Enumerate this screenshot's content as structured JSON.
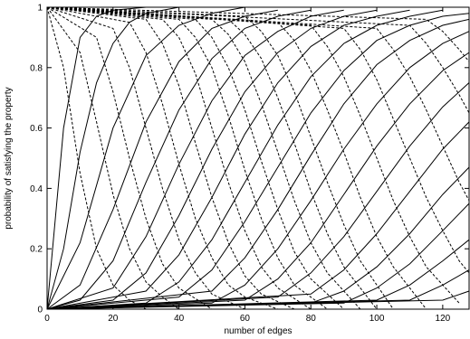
{
  "chart_data": {
    "type": "line",
    "title": "",
    "xlabel": "number of edges",
    "ylabel": "probability of satisfying the property",
    "xlim": [
      0,
      128
    ],
    "ylim": [
      0,
      1
    ],
    "xticks": [
      0,
      20,
      40,
      60,
      80,
      100,
      120
    ],
    "yticks": [
      0,
      0.2,
      0.4,
      0.6,
      0.8,
      1
    ],
    "xtick_labels": [
      "0",
      "20",
      "40",
      "60",
      "80",
      "100",
      "120"
    ],
    "ytick_labels": [
      "0",
      "0.2",
      "0.4",
      "0.6",
      "0.8",
      "1"
    ],
    "grid": false,
    "legend": "none",
    "series_style": {
      "solid": "increasing sigmoid curves",
      "dashed": "decreasing sigmoid curves"
    },
    "series": [
      {
        "style": "solid",
        "x": [
          0,
          5,
          10,
          15,
          20,
          30
        ],
        "y": [
          0,
          0.6,
          0.9,
          0.97,
          0.99,
          1
        ]
      },
      {
        "style": "solid",
        "x": [
          0,
          5,
          10,
          15,
          20,
          25,
          30,
          40
        ],
        "y": [
          0,
          0.2,
          0.52,
          0.75,
          0.88,
          0.95,
          0.98,
          1
        ]
      },
      {
        "style": "solid",
        "x": [
          0,
          10,
          20,
          30,
          40,
          50,
          60
        ],
        "y": [
          0,
          0.22,
          0.6,
          0.84,
          0.94,
          0.98,
          1
        ]
      },
      {
        "style": "solid",
        "x": [
          0,
          10,
          20,
          30,
          40,
          50,
          60,
          70
        ],
        "y": [
          0,
          0.08,
          0.33,
          0.62,
          0.82,
          0.93,
          0.97,
          0.99
        ]
      },
      {
        "style": "solid",
        "x": [
          0,
          10,
          20,
          30,
          40,
          50,
          60,
          70,
          80
        ],
        "y": [
          0,
          0.03,
          0.16,
          0.42,
          0.66,
          0.83,
          0.93,
          0.97,
          0.99
        ]
      },
      {
        "style": "solid",
        "x": [
          0,
          20,
          30,
          40,
          50,
          60,
          70,
          80,
          90
        ],
        "y": [
          0,
          0.07,
          0.24,
          0.48,
          0.69,
          0.84,
          0.92,
          0.97,
          0.99
        ]
      },
      {
        "style": "solid",
        "x": [
          0,
          20,
          30,
          40,
          50,
          60,
          70,
          80,
          90,
          100
        ],
        "y": [
          0,
          0.03,
          0.12,
          0.31,
          0.53,
          0.72,
          0.85,
          0.93,
          0.97,
          0.99
        ]
      },
      {
        "style": "solid",
        "x": [
          0,
          30,
          40,
          50,
          60,
          70,
          80,
          90,
          100,
          110
        ],
        "y": [
          0,
          0.06,
          0.18,
          0.37,
          0.58,
          0.75,
          0.87,
          0.94,
          0.97,
          0.99
        ]
      },
      {
        "style": "solid",
        "x": [
          0,
          30,
          40,
          50,
          60,
          70,
          80,
          90,
          100,
          110,
          120
        ],
        "y": [
          0,
          0.02,
          0.09,
          0.23,
          0.42,
          0.61,
          0.77,
          0.88,
          0.94,
          0.97,
          0.99
        ]
      },
      {
        "style": "solid",
        "x": [
          0,
          40,
          50,
          60,
          70,
          80,
          90,
          100,
          110,
          120,
          128
        ],
        "y": [
          0,
          0.04,
          0.13,
          0.29,
          0.47,
          0.65,
          0.79,
          0.89,
          0.94,
          0.97,
          0.98
        ]
      },
      {
        "style": "solid",
        "x": [
          0,
          50,
          60,
          70,
          80,
          90,
          100,
          110,
          120,
          128
        ],
        "y": [
          0,
          0.06,
          0.17,
          0.33,
          0.51,
          0.68,
          0.81,
          0.89,
          0.94,
          0.96
        ]
      },
      {
        "style": "solid",
        "x": [
          0,
          50,
          60,
          70,
          80,
          90,
          100,
          110,
          120,
          128
        ],
        "y": [
          0,
          0.02,
          0.08,
          0.2,
          0.36,
          0.53,
          0.68,
          0.8,
          0.88,
          0.92
        ]
      },
      {
        "style": "solid",
        "x": [
          0,
          60,
          70,
          80,
          90,
          100,
          110,
          120,
          128
        ],
        "y": [
          0,
          0.03,
          0.1,
          0.22,
          0.38,
          0.54,
          0.68,
          0.79,
          0.85
        ]
      },
      {
        "style": "solid",
        "x": [
          0,
          70,
          80,
          90,
          100,
          110,
          120,
          128
        ],
        "y": [
          0,
          0.04,
          0.12,
          0.24,
          0.39,
          0.54,
          0.67,
          0.75
        ]
      },
      {
        "style": "solid",
        "x": [
          0,
          80,
          90,
          100,
          110,
          120,
          128
        ],
        "y": [
          0,
          0.05,
          0.13,
          0.25,
          0.39,
          0.53,
          0.62
        ]
      },
      {
        "style": "solid",
        "x": [
          0,
          80,
          90,
          100,
          110,
          120,
          128
        ],
        "y": [
          0,
          0.02,
          0.06,
          0.14,
          0.25,
          0.38,
          0.47
        ]
      },
      {
        "style": "solid",
        "x": [
          0,
          90,
          100,
          110,
          120,
          128
        ],
        "y": [
          0,
          0.02,
          0.07,
          0.15,
          0.26,
          0.35
        ]
      },
      {
        "style": "solid",
        "x": [
          0,
          100,
          110,
          120,
          128
        ],
        "y": [
          0,
          0.03,
          0.08,
          0.16,
          0.23
        ]
      },
      {
        "style": "solid",
        "x": [
          0,
          110,
          120,
          128
        ],
        "y": [
          0,
          0.03,
          0.08,
          0.13
        ]
      },
      {
        "style": "solid",
        "x": [
          0,
          120,
          128
        ],
        "y": [
          0,
          0.03,
          0.06
        ]
      },
      {
        "style": "dashed",
        "x": [
          0,
          5,
          10,
          15,
          20,
          25,
          30
        ],
        "y": [
          1,
          0.8,
          0.45,
          0.2,
          0.08,
          0.03,
          0
        ]
      },
      {
        "style": "dashed",
        "x": [
          0,
          10,
          15,
          20,
          25,
          30,
          35,
          40
        ],
        "y": [
          1,
          0.85,
          0.62,
          0.38,
          0.2,
          0.09,
          0.04,
          0
        ]
      },
      {
        "style": "dashed",
        "x": [
          0,
          15,
          20,
          25,
          30,
          35,
          40,
          50
        ],
        "y": [
          1,
          0.9,
          0.72,
          0.5,
          0.3,
          0.15,
          0.07,
          0
        ]
      },
      {
        "style": "dashed",
        "x": [
          0,
          20,
          25,
          30,
          35,
          40,
          45,
          50,
          60
        ],
        "y": [
          1,
          0.93,
          0.8,
          0.6,
          0.4,
          0.23,
          0.12,
          0.05,
          0
        ]
      },
      {
        "style": "dashed",
        "x": [
          0,
          25,
          30,
          35,
          40,
          45,
          50,
          55,
          60,
          70
        ],
        "y": [
          1,
          0.95,
          0.85,
          0.68,
          0.48,
          0.3,
          0.17,
          0.08,
          0.04,
          0
        ]
      },
      {
        "style": "dashed",
        "x": [
          0,
          30,
          35,
          40,
          45,
          50,
          55,
          60,
          65,
          75
        ],
        "y": [
          1,
          0.96,
          0.88,
          0.74,
          0.55,
          0.37,
          0.22,
          0.11,
          0.05,
          0
        ]
      },
      {
        "style": "dashed",
        "x": [
          0,
          35,
          40,
          45,
          50,
          55,
          60,
          65,
          70,
          80
        ],
        "y": [
          1,
          0.96,
          0.9,
          0.78,
          0.6,
          0.42,
          0.26,
          0.14,
          0.07,
          0
        ]
      },
      {
        "style": "dashed",
        "x": [
          0,
          40,
          45,
          50,
          55,
          60,
          65,
          70,
          75,
          85
        ],
        "y": [
          1,
          0.96,
          0.9,
          0.8,
          0.64,
          0.46,
          0.3,
          0.17,
          0.08,
          0
        ]
      },
      {
        "style": "dashed",
        "x": [
          0,
          45,
          50,
          55,
          60,
          65,
          70,
          75,
          80,
          90
        ],
        "y": [
          1,
          0.96,
          0.9,
          0.8,
          0.66,
          0.49,
          0.33,
          0.19,
          0.1,
          0
        ]
      },
      {
        "style": "dashed",
        "x": [
          0,
          50,
          55,
          60,
          65,
          70,
          75,
          80,
          85,
          95
        ],
        "y": [
          1,
          0.96,
          0.91,
          0.82,
          0.68,
          0.52,
          0.36,
          0.22,
          0.12,
          0
        ]
      },
      {
        "style": "dashed",
        "x": [
          0,
          55,
          60,
          65,
          70,
          75,
          80,
          85,
          90,
          100
        ],
        "y": [
          1,
          0.96,
          0.91,
          0.83,
          0.7,
          0.55,
          0.39,
          0.25,
          0.14,
          0
        ]
      },
      {
        "style": "dashed",
        "x": [
          0,
          60,
          65,
          70,
          75,
          80,
          85,
          90,
          95,
          105
        ],
        "y": [
          1,
          0.97,
          0.92,
          0.84,
          0.72,
          0.57,
          0.42,
          0.28,
          0.16,
          0
        ]
      },
      {
        "style": "dashed",
        "x": [
          0,
          70,
          75,
          80,
          85,
          90,
          95,
          100,
          105,
          115
        ],
        "y": [
          1,
          0.95,
          0.89,
          0.79,
          0.66,
          0.52,
          0.37,
          0.24,
          0.14,
          0
        ]
      },
      {
        "style": "dashed",
        "x": [
          0,
          80,
          85,
          90,
          95,
          100,
          105,
          110,
          115,
          125
        ],
        "y": [
          1,
          0.94,
          0.87,
          0.77,
          0.64,
          0.5,
          0.36,
          0.24,
          0.14,
          0.02
        ]
      },
      {
        "style": "dashed",
        "x": [
          0,
          90,
          95,
          100,
          105,
          110,
          115,
          120,
          125,
          128
        ],
        "y": [
          1,
          0.93,
          0.86,
          0.76,
          0.63,
          0.5,
          0.37,
          0.26,
          0.16,
          0.12
        ]
      },
      {
        "style": "dashed",
        "x": [
          0,
          100,
          105,
          110,
          115,
          120,
          125,
          128
        ],
        "y": [
          1,
          0.93,
          0.86,
          0.77,
          0.66,
          0.54,
          0.42,
          0.36
        ]
      },
      {
        "style": "dashed",
        "x": [
          0,
          110,
          115,
          120,
          125,
          128
        ],
        "y": [
          1,
          0.94,
          0.88,
          0.8,
          0.71,
          0.65
        ]
      },
      {
        "style": "dashed",
        "x": [
          0,
          115,
          120,
          125,
          128
        ],
        "y": [
          1,
          0.96,
          0.92,
          0.86,
          0.82
        ]
      }
    ]
  }
}
